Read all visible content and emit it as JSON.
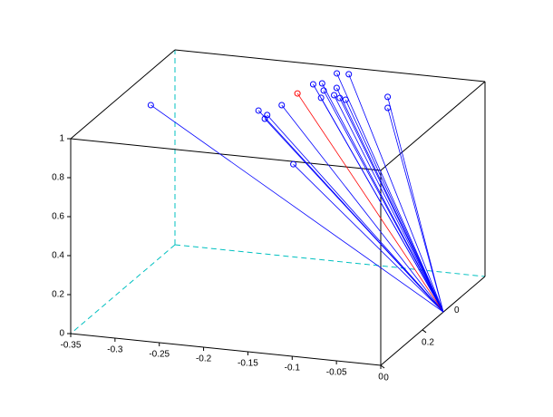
{
  "chart_data": {
    "type": "stem3d",
    "origin": {
      "x": 0,
      "y": 0.3,
      "z": 0
    },
    "x": [
      -0.309,
      -0.194,
      -0.18,
      -0.178,
      -0.177,
      -0.175,
      -0.17,
      -0.162,
      -0.152,
      -0.146,
      -0.159,
      -0.142,
      -0.136,
      -0.127,
      -0.119,
      -0.146,
      -0.08,
      -0.067,
      -0.13
    ],
    "y": [
      0.21,
      0.238,
      0.22,
      0.2,
      0.277,
      0.344,
      0.398,
      0.407,
      0.372,
      0.334,
      0.465,
      0.392,
      0.354,
      0.343,
      0.337,
      0.467,
      0.373,
      0.318,
      0.133
    ],
    "z": [
      1,
      1,
      1,
      1,
      1,
      1,
      1,
      1,
      1,
      1,
      1,
      1,
      1,
      1,
      1,
      1,
      1,
      1,
      0.85
    ],
    "colors": [
      "#0000ff",
      "#0000ff",
      "#0000ff",
      "#0000ff",
      "#0000ff",
      "#ff0000",
      "#0000ff",
      "#0000ff",
      "#0000ff",
      "#0000ff",
      "#0000ff",
      "#0000ff",
      "#0000ff",
      "#0000ff",
      "#0000ff",
      "#0000ff",
      "#0000ff",
      "#0000ff",
      "#0000ff"
    ],
    "xlim": [
      -0.35,
      0
    ],
    "ylim": [
      0,
      0.5
    ],
    "zlim": [
      0,
      1
    ],
    "xticks": [
      -0.35,
      -0.3,
      -0.25,
      -0.2,
      -0.15,
      -0.1,
      -0.05,
      0
    ],
    "yticks": [
      0,
      0.2
    ],
    "zticks": [
      0,
      0.2,
      0.4,
      0.6,
      0.8,
      1
    ],
    "annotation": "0",
    "box_color": "#000000",
    "back_color": "#00c0c0"
  }
}
